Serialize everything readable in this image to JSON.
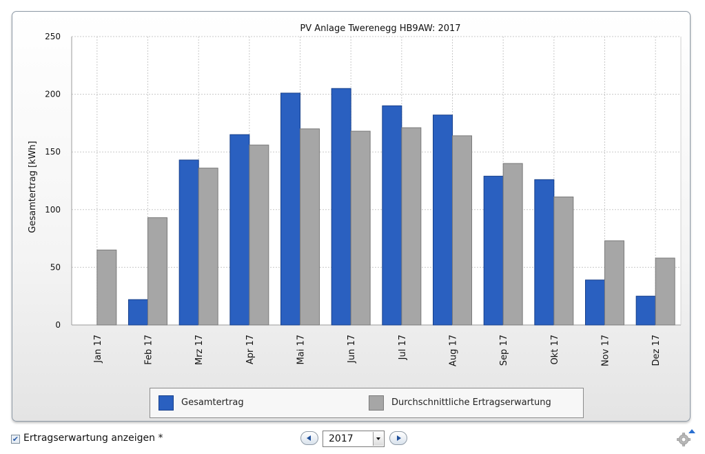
{
  "chart_data": {
    "type": "bar",
    "title": "PV Anlage Twerenegg HB9AW: 2017",
    "ylabel": "Gesamtertrag [kWh]",
    "xlabel": "",
    "ylim": [
      0,
      250
    ],
    "yticks": [
      0,
      50,
      100,
      150,
      200,
      250
    ],
    "grid": true,
    "legend_position": "bottom",
    "categories": [
      "Jan 17",
      "Feb 17",
      "Mrz 17",
      "Apr 17",
      "Mai 17",
      "Jun 17",
      "Jul 17",
      "Aug 17",
      "Sep 17",
      "Okt 17",
      "Nov 17",
      "Dez 17"
    ],
    "series": [
      {
        "name": "Gesamtertrag",
        "color": "#2a60c0",
        "values": [
          0,
          22,
          143,
          165,
          201,
          205,
          190,
          182,
          129,
          126,
          39,
          25
        ]
      },
      {
        "name": "Durchschnittliche Ertragserwartung",
        "color": "#a6a6a6",
        "values": [
          65,
          93,
          136,
          156,
          170,
          168,
          171,
          164,
          140,
          111,
          73,
          58
        ]
      }
    ]
  },
  "controls": {
    "show_expectation_label": "Ertragserwartung anzeigen *",
    "show_expectation_checked": true,
    "year_value": "2017"
  },
  "icons": {
    "prev": "arrow-left-icon",
    "next": "arrow-right-icon",
    "dropdown": "chevron-down-icon",
    "settings": "gear-icon"
  }
}
